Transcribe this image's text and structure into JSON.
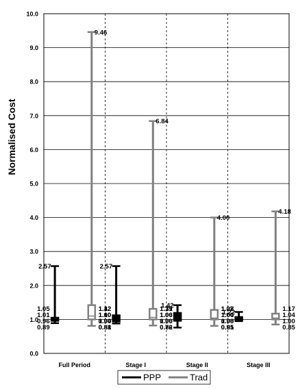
{
  "chart_data": {
    "type": "boxplot",
    "title": "",
    "xlabel": "",
    "ylabel": "Normalised Cost",
    "ylim": [
      0,
      10
    ],
    "yticks": [
      "0.0",
      "1.0",
      "2.0",
      "3.0",
      "4.0",
      "5.0",
      "6.0",
      "7.0",
      "8.0",
      "9.0",
      "10.0"
    ],
    "grid": true,
    "legend_position": "bottom-center",
    "categories": [
      "Full Period",
      "Stage I",
      "Stage II",
      "Stage III"
    ],
    "series": [
      {
        "name": "PPP",
        "color": "#000000",
        "boxes": [
          {
            "min": 0.89,
            "q1": 0.96,
            "median": 1.01,
            "q3": 1.05,
            "max": 2.57,
            "labels": [
              "2.57",
              "1.05",
              "1.01",
              "0.96",
              "0.89"
            ]
          },
          {
            "min": 0.88,
            "q1": 0.94,
            "median": 1.0,
            "q3": 1.12,
            "max": 2.57,
            "labels": [
              "2.57",
              "1.12",
              "1.00",
              "0.94",
              "0.88"
            ]
          },
          {
            "min": 0.76,
            "q1": 0.96,
            "median": 1.0,
            "q3": 1.19,
            "max": 1.42,
            "labels": [
              "1.42",
              "1.19",
              "1.00",
              "0.96",
              "0.76"
            ]
          },
          {
            "min": 0.95,
            "q1": 0.98,
            "median": 1.0,
            "q3": 1.07,
            "max": 1.22,
            "labels": [
              "1.22",
              "1.07",
              "1.00",
              "0.98",
              "0.95"
            ]
          }
        ]
      },
      {
        "name": "Trad",
        "color": "#808080",
        "boxes": [
          {
            "min": 0.81,
            "q1": 1.0,
            "median": 1.1,
            "q3": 1.42,
            "max": 9.46,
            "labels": [
              "9.46",
              "1.42",
              "1.10",
              "1.00",
              "0.81"
            ]
          },
          {
            "min": 0.82,
            "q1": 1.0,
            "median": 1.06,
            "q3": 1.31,
            "max": 6.84,
            "labels": [
              "6.84",
              "1.31",
              "1.06",
              "1.00",
              "0.82"
            ]
          },
          {
            "min": 0.81,
            "q1": 1.0,
            "median": 1.04,
            "q3": 1.28,
            "max": 4.0,
            "labels": [
              "4.00",
              "1.28",
              "1.04",
              "1.00",
              "0.81"
            ]
          },
          {
            "min": 0.85,
            "q1": 1.0,
            "median": 1.04,
            "q3": 1.17,
            "max": 4.18,
            "labels": [
              "4.18",
              "1.17",
              "1.04",
              "1.00",
              "0.85"
            ]
          }
        ]
      }
    ]
  }
}
